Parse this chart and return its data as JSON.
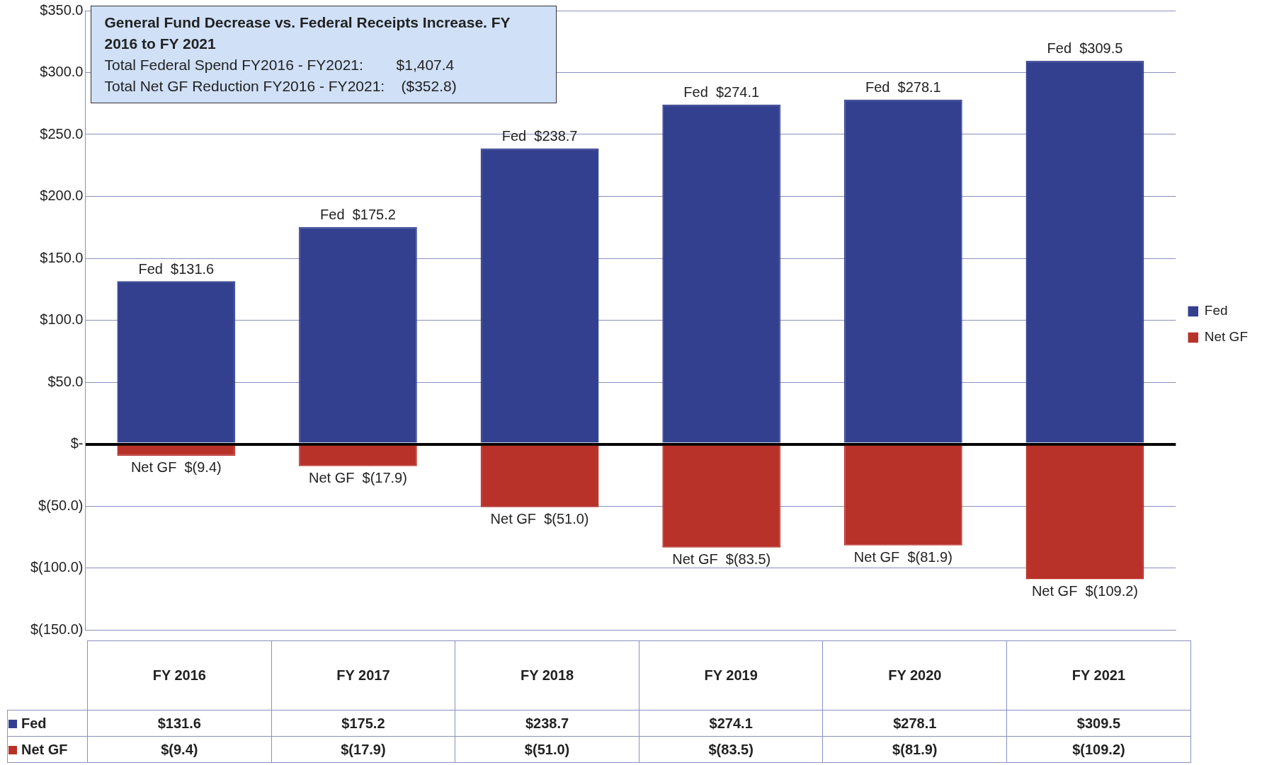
{
  "chart_data": {
    "type": "bar",
    "title": "General Fund Decrease vs. Federal Receipts Increase. FY 2016 to FY 2021",
    "annotations": [
      "Total Federal Spend FY2016 - FY2021:        $1,407.4",
      "Total Net GF Reduction FY2016 - FY2021:    ($352.8)"
    ],
    "categories": [
      "FY 2016",
      "FY 2017",
      "FY 2018",
      "FY 2019",
      "FY 2020",
      "FY 2021"
    ],
    "stacked": true,
    "series": [
      {
        "name": "Fed",
        "color": "#33408f",
        "values": [
          131.6,
          175.2,
          238.7,
          274.1,
          278.1,
          309.5
        ],
        "value_labels": [
          "$131.6",
          "$175.2",
          "$238.7",
          "$274.1",
          "$278.1",
          "$309.5"
        ]
      },
      {
        "name": "Net GF",
        "color": "#b8322a",
        "values": [
          -9.4,
          -17.9,
          -51.0,
          -83.5,
          -81.9,
          -109.2
        ],
        "value_labels": [
          "$(9.4)",
          "$(17.9)",
          "$(51.0)",
          "$(83.5)",
          "$(81.9)",
          "$(109.2)"
        ]
      }
    ],
    "ylim": [
      -150,
      350
    ],
    "yticks": [
      {
        "value": -150,
        "label": "$(150.0)"
      },
      {
        "value": -100,
        "label": "$(100.0)"
      },
      {
        "value": -50,
        "label": "$(50.0)"
      },
      {
        "value": 0,
        "label": "$-"
      },
      {
        "value": 50,
        "label": "$50.0"
      },
      {
        "value": 100,
        "label": "$100.0"
      },
      {
        "value": 150,
        "label": "$150.0"
      },
      {
        "value": 200,
        "label": "$200.0"
      },
      {
        "value": 250,
        "label": "$250.0"
      },
      {
        "value": 300,
        "label": "$300.0"
      },
      {
        "value": 350,
        "label": "$350.0"
      }
    ],
    "grid": "y",
    "legend": "right"
  }
}
